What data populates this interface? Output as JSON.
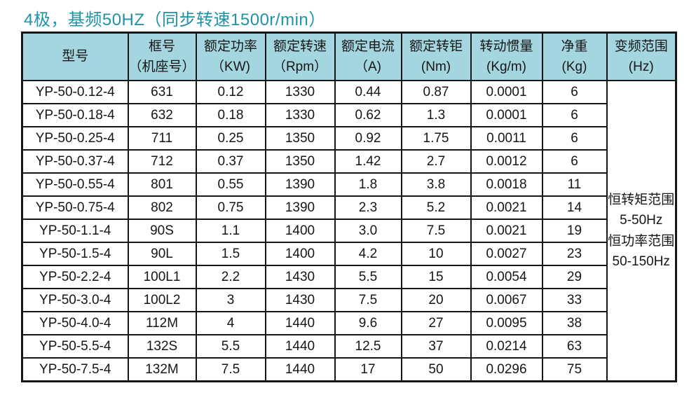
{
  "page": {
    "title": "4极，基频50HZ（同步转速1500r/min）",
    "title_color": "#1e93a8",
    "header_bg": "#a4d6e0",
    "border_color": "#171717"
  },
  "table": {
    "headers": [
      "型号",
      "框号\n（机座号）",
      "额定功率\n（KW)",
      "额定转速\n（Rpm）",
      "额定电流\n（A)",
      "额定转钜\n(Nm)",
      "转动惯量\n(Kg/m)",
      "净重\n(Kg)",
      "变频范围\n(Hz)"
    ],
    "rows": [
      [
        "YP-50-0.12-4",
        "631",
        "0.12",
        "1330",
        "0.44",
        "0.87",
        "0.0001",
        "6"
      ],
      [
        "YP-50-0.18-4",
        "632",
        "0.18",
        "1330",
        "0.62",
        "1.3",
        "0.0001",
        "6"
      ],
      [
        "YP-50-0.25-4",
        "711",
        "0.25",
        "1350",
        "0.92",
        "1.75",
        "0.0011",
        "6"
      ],
      [
        "YP-50-0.37-4",
        "712",
        "0.37",
        "1350",
        "1.42",
        "2.7",
        "0.0012",
        "6"
      ],
      [
        "YP-50-0.55-4",
        "801",
        "0.55",
        "1390",
        "1.8",
        "3.8",
        "0.0018",
        "11"
      ],
      [
        "YP-50-0.75-4",
        "802",
        "0.75",
        "1390",
        "2.3",
        "5.2",
        "0.0021",
        "14"
      ],
      [
        "YP-50-1.1-4",
        "90S",
        "1.1",
        "1400",
        "3.0",
        "7.5",
        "0.0021",
        "19"
      ],
      [
        "YP-50-1.5-4",
        "90L",
        "1.5",
        "1400",
        "4.2",
        "10",
        "0.0027",
        "23"
      ],
      [
        "YP-50-2.2-4",
        "100L1",
        "2.2",
        "1430",
        "5.5",
        "15",
        "0.0054",
        "29"
      ],
      [
        "YP-50-3.0-4",
        "100L2",
        "3",
        "1430",
        "7.5",
        "20",
        "0.0067",
        "33"
      ],
      [
        "YP-50-4.0-4",
        "112M",
        "4",
        "1440",
        "9.6",
        "27",
        "0.0095",
        "38"
      ],
      [
        "YP-50-5.5-4",
        "132S",
        "5.5",
        "1440",
        "12.5",
        "37",
        "0.0214",
        "63"
      ],
      [
        "YP-50-7.5-4",
        "132M",
        "7.5",
        "1440",
        "17",
        "50",
        "0.0296",
        "75"
      ]
    ],
    "freq_range": "恒转矩范围\n5-50Hz\n恒功率范围\n50-150Hz"
  },
  "chart_data": {
    "type": "table",
    "title": "4极，基频50HZ（同步转速1500r/min）",
    "columns": [
      "型号",
      "框号（机座号）",
      "额定功率（KW)",
      "额定转速（Rpm）",
      "额定电流（A)",
      "额定转钜(Nm)",
      "转动惯量(Kg/m)",
      "净重(Kg)",
      "变频范围(Hz)"
    ],
    "rows": [
      [
        "YP-50-0.12-4",
        "631",
        "0.12",
        "1330",
        "0.44",
        "0.87",
        "0.0001",
        "6",
        "恒转矩范围 5-50Hz 恒功率范围 50-150Hz"
      ],
      [
        "YP-50-0.18-4",
        "632",
        "0.18",
        "1330",
        "0.62",
        "1.3",
        "0.0001",
        "6",
        ""
      ],
      [
        "YP-50-0.25-4",
        "711",
        "0.25",
        "1350",
        "0.92",
        "1.75",
        "0.0011",
        "6",
        ""
      ],
      [
        "YP-50-0.37-4",
        "712",
        "0.37",
        "1350",
        "1.42",
        "2.7",
        "0.0012",
        "6",
        ""
      ],
      [
        "YP-50-0.55-4",
        "801",
        "0.55",
        "1390",
        "1.8",
        "3.8",
        "0.0018",
        "11",
        ""
      ],
      [
        "YP-50-0.75-4",
        "802",
        "0.75",
        "1390",
        "2.3",
        "5.2",
        "0.0021",
        "14",
        ""
      ],
      [
        "YP-50-1.1-4",
        "90S",
        "1.1",
        "1400",
        "3.0",
        "7.5",
        "0.0021",
        "19",
        ""
      ],
      [
        "YP-50-1.5-4",
        "90L",
        "1.5",
        "1400",
        "4.2",
        "10",
        "0.0027",
        "23",
        ""
      ],
      [
        "YP-50-2.2-4",
        "100L1",
        "2.2",
        "1430",
        "5.5",
        "15",
        "0.0054",
        "29",
        ""
      ],
      [
        "YP-50-3.0-4",
        "100L2",
        "3",
        "1430",
        "7.5",
        "20",
        "0.0067",
        "33",
        ""
      ],
      [
        "YP-50-4.0-4",
        "112M",
        "4",
        "1440",
        "9.6",
        "27",
        "0.0095",
        "38",
        ""
      ],
      [
        "YP-50-5.5-4",
        "132S",
        "5.5",
        "1440",
        "12.5",
        "37",
        "0.0214",
        "63",
        ""
      ],
      [
        "YP-50-7.5-4",
        "132M",
        "7.5",
        "1440",
        "17",
        "50",
        "0.0296",
        "75",
        ""
      ]
    ]
  }
}
